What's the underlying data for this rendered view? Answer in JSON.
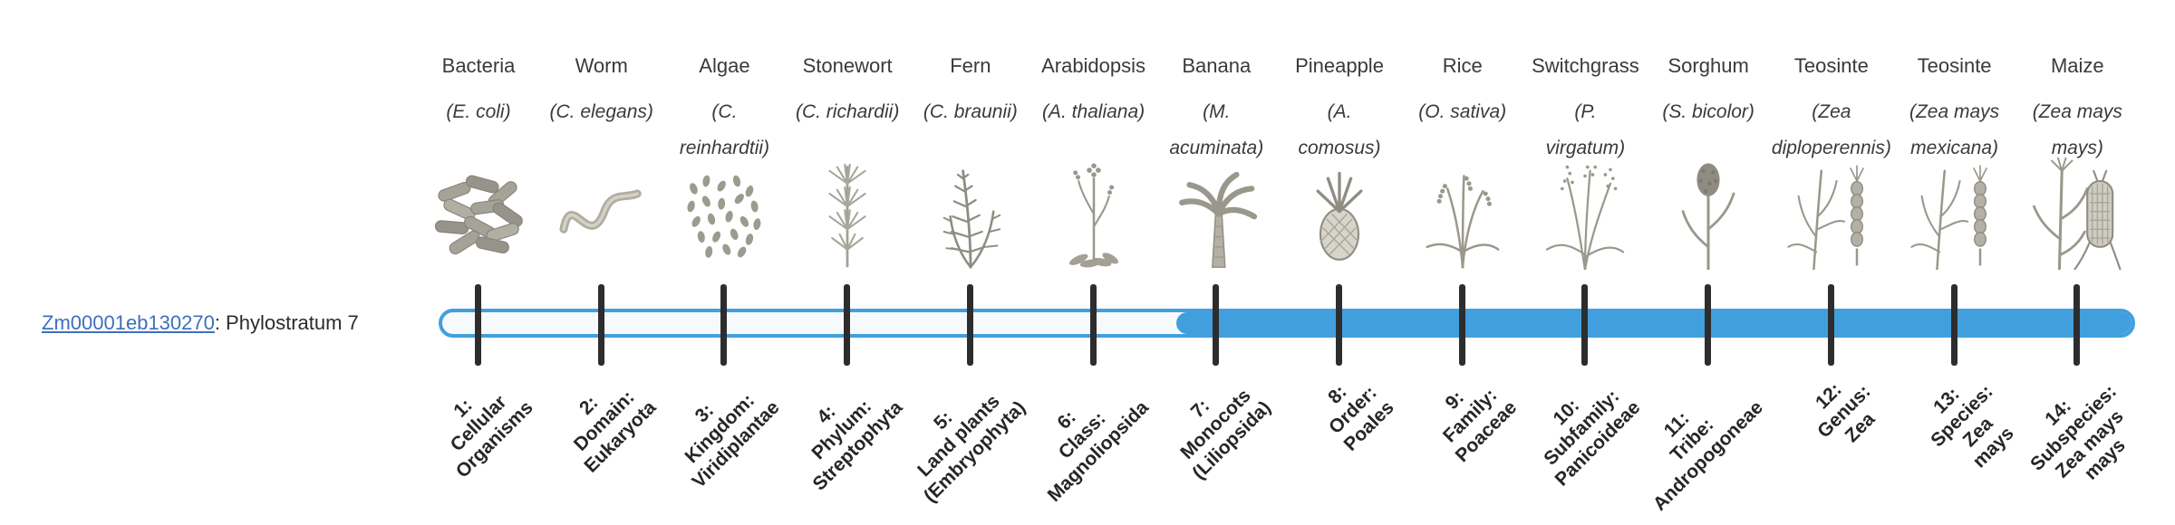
{
  "gene": {
    "id": "Zm00001eb130270",
    "suffix": ": Phylostratum 7"
  },
  "theme": {
    "link_color": "#3e6fbe",
    "text_color": "#3a3a3a",
    "label_color": "#262626"
  },
  "timeline": {
    "bar_color": "#429fde",
    "bar_background": "#f7fafc",
    "tick_color": "#2d2d2d",
    "bar_fill_from_stratum": 7,
    "total_strata": 14
  },
  "strata": [
    {
      "index": 1,
      "organism": "Bacteria",
      "latin": "(E. coli)",
      "icon": "bacteria-icon",
      "label": "1:\nCellular\nOrganisms"
    },
    {
      "index": 2,
      "organism": "Worm",
      "latin": "(C. elegans)",
      "icon": "worm-icon",
      "label": "2:\nDomain:\nEukaryota"
    },
    {
      "index": 3,
      "organism": "Algae",
      "latin": "(C.\nreinhardtii)",
      "icon": "algae-icon",
      "label": "3:\nKingdom:\nViridiplantae"
    },
    {
      "index": 4,
      "organism": "Stonewort",
      "latin": "(C. richardii)",
      "icon": "stonewort-icon",
      "label": "4:\nPhylum:\nStreptophyta"
    },
    {
      "index": 5,
      "organism": "Fern",
      "latin": "(C. braunii)",
      "icon": "fern-icon",
      "label": "5:\nLand plants\n(Embryophyta)"
    },
    {
      "index": 6,
      "organism": "Arabidopsis",
      "latin": "(A. thaliana)",
      "icon": "arabidopsis-icon",
      "label": "6:\nClass:\nMagnoliopsida"
    },
    {
      "index": 7,
      "organism": "Banana",
      "latin": "(M.\nacuminata)",
      "icon": "banana-icon",
      "label": "7:\nMonocots\n(Liliopsida)"
    },
    {
      "index": 8,
      "organism": "Pineapple",
      "latin": "(A.\ncomosus)",
      "icon": "pineapple-icon",
      "label": "8:\nOrder:\nPoales"
    },
    {
      "index": 9,
      "organism": "Rice",
      "latin": "(O. sativa)",
      "icon": "rice-icon",
      "label": "9:\nFamily:\nPoaceae"
    },
    {
      "index": 10,
      "organism": "Switchgrass",
      "latin": "(P.\nvirgatum)",
      "icon": "switchgrass-icon",
      "label": "10:\nSubfamily:\nPanicoideae"
    },
    {
      "index": 11,
      "organism": "Sorghum",
      "latin": "(S. bicolor)",
      "icon": "sorghum-icon",
      "label": "11:\nTribe:\nAndropogoneae"
    },
    {
      "index": 12,
      "organism": "Teosinte",
      "latin": "(Zea\ndiploperennis)",
      "icon": "teosinte-icon",
      "label": "12:\nGenus:\nZea"
    },
    {
      "index": 13,
      "organism": "Teosinte",
      "latin": "(Zea mays\nmexicana)",
      "icon": "teosinte-icon",
      "label": "13:\nSpecies:\nZea\nmays"
    },
    {
      "index": 14,
      "organism": "Maize",
      "latin": "(Zea mays\nmays)",
      "icon": "maize-icon",
      "label": "14:\nSubspecies:\nZea mays\nmays"
    }
  ]
}
